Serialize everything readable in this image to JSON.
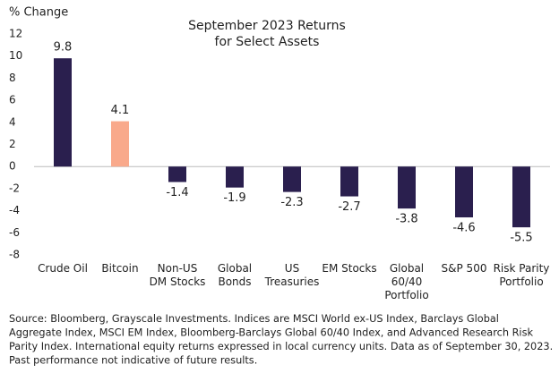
{
  "chart_data": {
    "type": "bar",
    "title": [
      "September 2023 Returns",
      "for Select Assets"
    ],
    "y_label": "% Change",
    "categories": [
      "Crude Oil",
      "Bitcoin",
      "Non-US\nDM Stocks",
      "Global\nBonds",
      "US\nTreasuries",
      "EM Stocks",
      "Global\n60/40\nPortfolio",
      "S&P 500",
      "Risk Parity\nPortfolio"
    ],
    "values": [
      9.8,
      4.1,
      -1.4,
      -1.9,
      -2.3,
      -2.7,
      -3.8,
      -4.6,
      -5.5
    ],
    "colors": [
      "#2a1f4e",
      "#f9a98b",
      "#2a1f4e",
      "#2a1f4e",
      "#2a1f4e",
      "#2a1f4e",
      "#2a1f4e",
      "#2a1f4e",
      "#2a1f4e"
    ],
    "ylim": [
      -8,
      12
    ],
    "yticks": [
      12,
      10,
      8,
      6,
      4,
      2,
      0,
      -2,
      -4,
      -6,
      -8
    ],
    "note": [
      "Source: Bloomberg, Grayscale Investments. Indices are MSCI World ex-US Index, Barclays Global",
      "Aggregate Index, MSCI EM Index, Bloomberg-Barclays Global 60/40 Index, and Advanced Research Risk",
      "Parity Index. International equity returns expressed in local currency units. Data as of September 30, 2023.",
      "Past performance not indicative of future results."
    ]
  }
}
